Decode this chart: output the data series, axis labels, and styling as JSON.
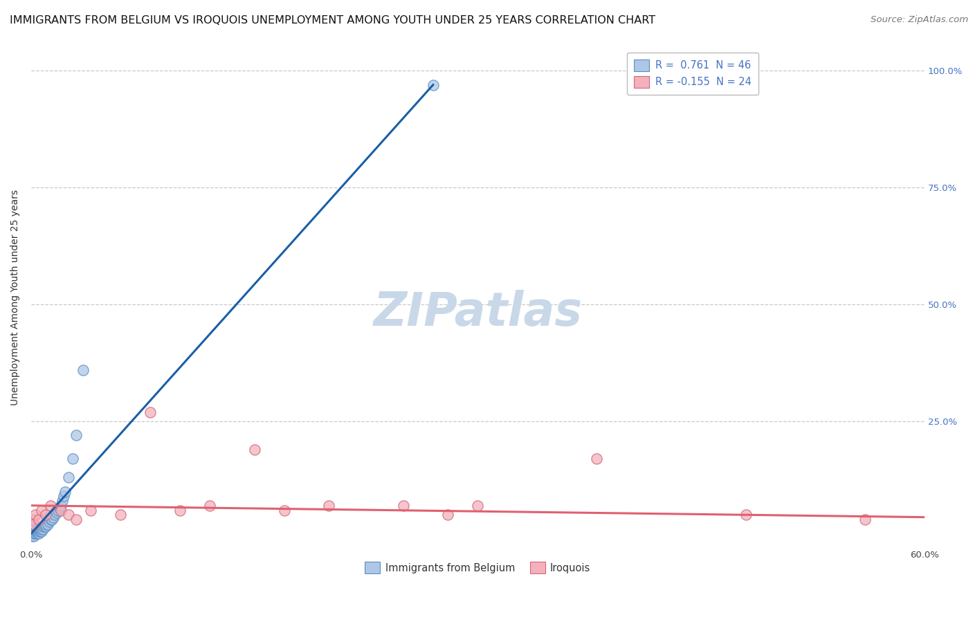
{
  "title": "IMMIGRANTS FROM BELGIUM VS IROQUOIS UNEMPLOYMENT AMONG YOUTH UNDER 25 YEARS CORRELATION CHART",
  "source": "Source: ZipAtlas.com",
  "ylabel": "Unemployment Among Youth under 25 years",
  "watermark": "ZIPatlas",
  "xlim": [
    0.0,
    0.6
  ],
  "ylim": [
    -0.02,
    1.05
  ],
  "xtick_labels": [
    "0.0%",
    "",
    "",
    "",
    "",
    "",
    "60.0%"
  ],
  "xtick_values": [
    0.0,
    0.1,
    0.2,
    0.3,
    0.4,
    0.5,
    0.6
  ],
  "ytick_labels": [
    "100.0%",
    "75.0%",
    "50.0%",
    "25.0%"
  ],
  "ytick_values": [
    1.0,
    0.75,
    0.5,
    0.25
  ],
  "r_blue": 0.761,
  "n_blue": 46,
  "r_pink": -0.155,
  "n_pink": 24,
  "blue_scatter_x": [
    0.001,
    0.001,
    0.001,
    0.001,
    0.002,
    0.002,
    0.002,
    0.002,
    0.002,
    0.003,
    0.003,
    0.003,
    0.003,
    0.004,
    0.004,
    0.004,
    0.005,
    0.005,
    0.005,
    0.006,
    0.006,
    0.007,
    0.007,
    0.008,
    0.008,
    0.009,
    0.01,
    0.01,
    0.011,
    0.012,
    0.013,
    0.014,
    0.015,
    0.016,
    0.017,
    0.018,
    0.019,
    0.02,
    0.021,
    0.022,
    0.023,
    0.025,
    0.028,
    0.03,
    0.035,
    0.27
  ],
  "blue_scatter_y": [
    0.005,
    0.01,
    0.015,
    0.02,
    0.005,
    0.01,
    0.015,
    0.02,
    0.025,
    0.01,
    0.015,
    0.02,
    0.025,
    0.01,
    0.015,
    0.02,
    0.01,
    0.015,
    0.02,
    0.015,
    0.02,
    0.015,
    0.02,
    0.02,
    0.025,
    0.025,
    0.025,
    0.03,
    0.03,
    0.035,
    0.04,
    0.04,
    0.045,
    0.05,
    0.055,
    0.06,
    0.065,
    0.07,
    0.08,
    0.09,
    0.1,
    0.13,
    0.17,
    0.22,
    0.36,
    0.97
  ],
  "pink_scatter_x": [
    0.001,
    0.002,
    0.003,
    0.005,
    0.007,
    0.01,
    0.013,
    0.02,
    0.025,
    0.03,
    0.04,
    0.06,
    0.08,
    0.1,
    0.12,
    0.15,
    0.17,
    0.2,
    0.25,
    0.28,
    0.3,
    0.38,
    0.48,
    0.56
  ],
  "pink_scatter_y": [
    0.04,
    0.03,
    0.05,
    0.04,
    0.06,
    0.05,
    0.07,
    0.06,
    0.05,
    0.04,
    0.06,
    0.05,
    0.27,
    0.06,
    0.07,
    0.19,
    0.06,
    0.07,
    0.07,
    0.05,
    0.07,
    0.17,
    0.05,
    0.04
  ],
  "blue_line_x": [
    0.0,
    0.27
  ],
  "blue_line_y": [
    0.01,
    0.97
  ],
  "pink_line_x": [
    0.0,
    0.6
  ],
  "pink_line_y": [
    0.07,
    0.045
  ],
  "blue_line_color": "#1a5fa8",
  "pink_line_color": "#e06070",
  "scatter_blue_color": "#aec6e8",
  "scatter_pink_color": "#f4b0bc",
  "scatter_blue_edge": "#5a8fc0",
  "scatter_pink_edge": "#d06878",
  "grid_color": "#c8c8c8",
  "background_color": "#ffffff",
  "title_fontsize": 11.5,
  "axis_label_fontsize": 10,
  "tick_fontsize": 9.5,
  "watermark_fontsize": 48,
  "watermark_color": "#c8d8e8",
  "source_fontsize": 9.5,
  "right_tick_color": "#4472c4",
  "legend_text_color": "#4472c4"
}
